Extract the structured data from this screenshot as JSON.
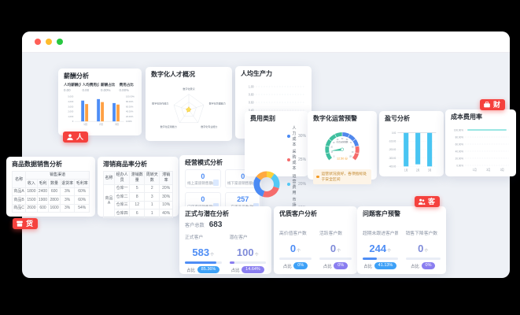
{
  "common": {
    "pct_prefix": "占比"
  },
  "window": {
    "dots": [
      "#ff5f57",
      "#febc2e",
      "#28c840"
    ]
  },
  "badges": {
    "hr": "人",
    "finance": "财",
    "goods": "货",
    "customer": "客"
  },
  "cards": {
    "salary": {
      "title": "薪酬分析",
      "stats": [
        {
          "label": "人均薪酬(元)",
          "value": "0.00"
        },
        {
          "label": "人均费用(元)",
          "value": "0.00"
        },
        {
          "label": "薪酬占比",
          "value": "0.00%"
        },
        {
          "label": "费用占比",
          "value": "0.00%"
        }
      ],
      "chart": {
        "type": "bar",
        "categories": [
          "1月",
          "2月",
          "3月"
        ],
        "yticks": [
          "5,000",
          "4,000",
          "3,000",
          "2,000",
          "1,000",
          "0"
        ],
        "rticks": [
          "100.00%",
          "80.00%",
          "60.00%",
          "40.00%",
          "20.00%",
          "0.00%"
        ],
        "max": 5000,
        "series": [
          {
            "name": "薪酬",
            "color": "#4e8df5",
            "values": [
              4200,
              4500,
              3700
            ]
          },
          {
            "name": "费用",
            "color": "#ffa043",
            "values": [
              3500,
              3900,
              3400
            ]
          }
        ]
      }
    },
    "radar": {
      "title": "数字化人才概况",
      "chart": {
        "type": "radar",
        "axes": [
          "数字化意识",
          "数字化管理能力",
          "数字化专业能力",
          "数字化应用能力",
          "数字化协作能力"
        ],
        "values": [
          18,
          13,
          10,
          15,
          16
        ],
        "max": 100,
        "color": "#fdd835"
      }
    },
    "productivity": {
      "title": "人均生产力",
      "chart": {
        "type": "line",
        "yticks": [
          "1.00",
          "0.80",
          "0.60",
          "0.40",
          "0.20",
          "0.00"
        ],
        "values": []
      }
    },
    "expense": {
      "title": "费用类别",
      "chart": {
        "type": "pie",
        "slices": [
          {
            "label": "人力成本",
            "pct": 30,
            "color": "#4a8af4"
          },
          {
            "label": "采购成本",
            "pct": 25,
            "color": "#f56c6c"
          },
          {
            "label": "运营费用",
            "pct": 20,
            "color": "#54c8f5"
          },
          {
            "label": "市场费用",
            "pct": 15,
            "color": "#ffa940"
          },
          {
            "label": "其他费用",
            "pct": 10,
            "color": "#fdd13a"
          }
        ],
        "order": [
          4,
          2,
          1,
          0,
          3
        ]
      }
    },
    "gauge": {
      "title": "数字化运营预警",
      "chart": {
        "type": "gauge",
        "min": 0,
        "max": 100,
        "value": 12.5,
        "value_label": "12.50",
        "unit": "分",
        "center_label": "综合运营指数",
        "ticks": [
          "0",
          "10",
          "20",
          "30",
          "40",
          "50",
          "60",
          "70",
          "80",
          "90",
          "100"
        ],
        "segments": [
          {
            "to": 0.5,
            "color": "#3fbf9f"
          },
          {
            "to": 0.8,
            "color": "#5087ec"
          },
          {
            "to": 1.0,
            "color": "#f56c6c"
          }
        ]
      },
      "alert": "运营状况良好，各项指标处于安全区间"
    },
    "loss": {
      "title": "盈亏分析",
      "chart": {
        "type": "bar",
        "categories": [
          "1月",
          "2月",
          "3月"
        ],
        "yticks": [
          "0.00",
          "-100.00",
          "-200.00",
          "-300.00",
          "-400.00"
        ],
        "values": [
          -400,
          -375,
          -400
        ],
        "max": 400,
        "color": "#49c5f2"
      }
    },
    "cost_ratio": {
      "title": "成本费用率",
      "chart": {
        "type": "line",
        "categories": [
          "1月",
          "2月",
          "3月"
        ],
        "yticks": [
          "100.00%",
          "80.00%",
          "60.00%",
          "40.00%",
          "20.00%",
          "0.00%"
        ],
        "values": [
          100,
          100,
          100
        ],
        "color": "#5fd8d2"
      }
    },
    "product_table": {
      "title": "商品数据销售分析",
      "group_header": "销售渠道",
      "first_col": "名称",
      "columns": [
        "收入",
        "毛利",
        "数量",
        "退货率",
        "毛利率"
      ],
      "rows": [
        [
          "商品A",
          "1800",
          "2400",
          "600",
          "3%",
          "60%"
        ],
        [
          "商品B",
          "1500",
          "1900",
          "2800",
          "3%",
          "60%"
        ],
        [
          "商品C",
          "2600",
          "600",
          "1600",
          "3%",
          "54%"
        ]
      ]
    },
    "slow_table": {
      "title": "滞销商品率分析",
      "columns": [
        "名称",
        "经办人员",
        "滞销数量",
        "周转天数",
        "滞销率"
      ],
      "rows": [
        [
          "商品A",
          "仓库一",
          "5",
          "2",
          "20%"
        ],
        [
          "",
          "仓库二",
          "8",
          "3",
          "30%"
        ],
        [
          "",
          "仓库三",
          "12",
          "1",
          "10%"
        ],
        [
          "",
          "仓库四",
          "6",
          "1",
          "40%"
        ]
      ]
    },
    "biz_model": {
      "title": "经营模式分析",
      "tiles": [
        {
          "value": "0",
          "label": "线上渠道销售额(万)"
        },
        {
          "value": "0",
          "label": "线下渠道销售额(万)"
        },
        {
          "value": "0",
          "label": "门店渠道销售额(万)"
        },
        {
          "value": "257",
          "label": "在库商品数(种)"
        }
      ]
    },
    "cust_split": {
      "title": "正式与潜在分析",
      "total_label": "客户总数",
      "total_value": "683",
      "metrics": [
        {
          "label": "正式客户",
          "value": "583",
          "unit": "个",
          "pct": 85,
          "pill": "85.36%",
          "pill_color": "#3ea1f7",
          "value_color": "#4e8df5",
          "fill_color": "#4e8df5"
        },
        {
          "label": "潜在客户",
          "value": "100",
          "unit": "个",
          "pct": 15,
          "pill": "14.64%",
          "pill_color": "#8a7ef0",
          "value_color": "#7f8bd9",
          "fill_color": "#8a7ef0"
        }
      ]
    },
    "quality": {
      "title": "优质客户分析",
      "metrics": [
        {
          "label": "高价值客户数",
          "value": "0",
          "unit": "个",
          "pct": 0,
          "pill": "0%",
          "pill_color": "#3ea1f7",
          "value_color": "#4e8df5",
          "fill_color": "#4e8df5"
        },
        {
          "label": "活跃客户数",
          "value": "0",
          "unit": "个",
          "pct": 0,
          "pill": "0%",
          "pill_color": "#8a7ef0",
          "value_color": "#7f8bd9",
          "fill_color": "#8a7ef0"
        }
      ]
    },
    "warning": {
      "title": "问题客户预警",
      "metrics": [
        {
          "label": "超期未跟进客户数",
          "value": "244",
          "unit": "个",
          "pct": 41,
          "pill": "41.13%",
          "pill_color": "#3ea1f7",
          "value_color": "#4e8df5",
          "fill_color": "#4e8df5"
        },
        {
          "label": "销售下降客户数",
          "value": "0",
          "unit": "个",
          "pct": 0,
          "pill": "0%",
          "pill_color": "#8a7ef0",
          "value_color": "#7f8bd9",
          "fill_color": "#8a7ef0"
        }
      ]
    }
  }
}
